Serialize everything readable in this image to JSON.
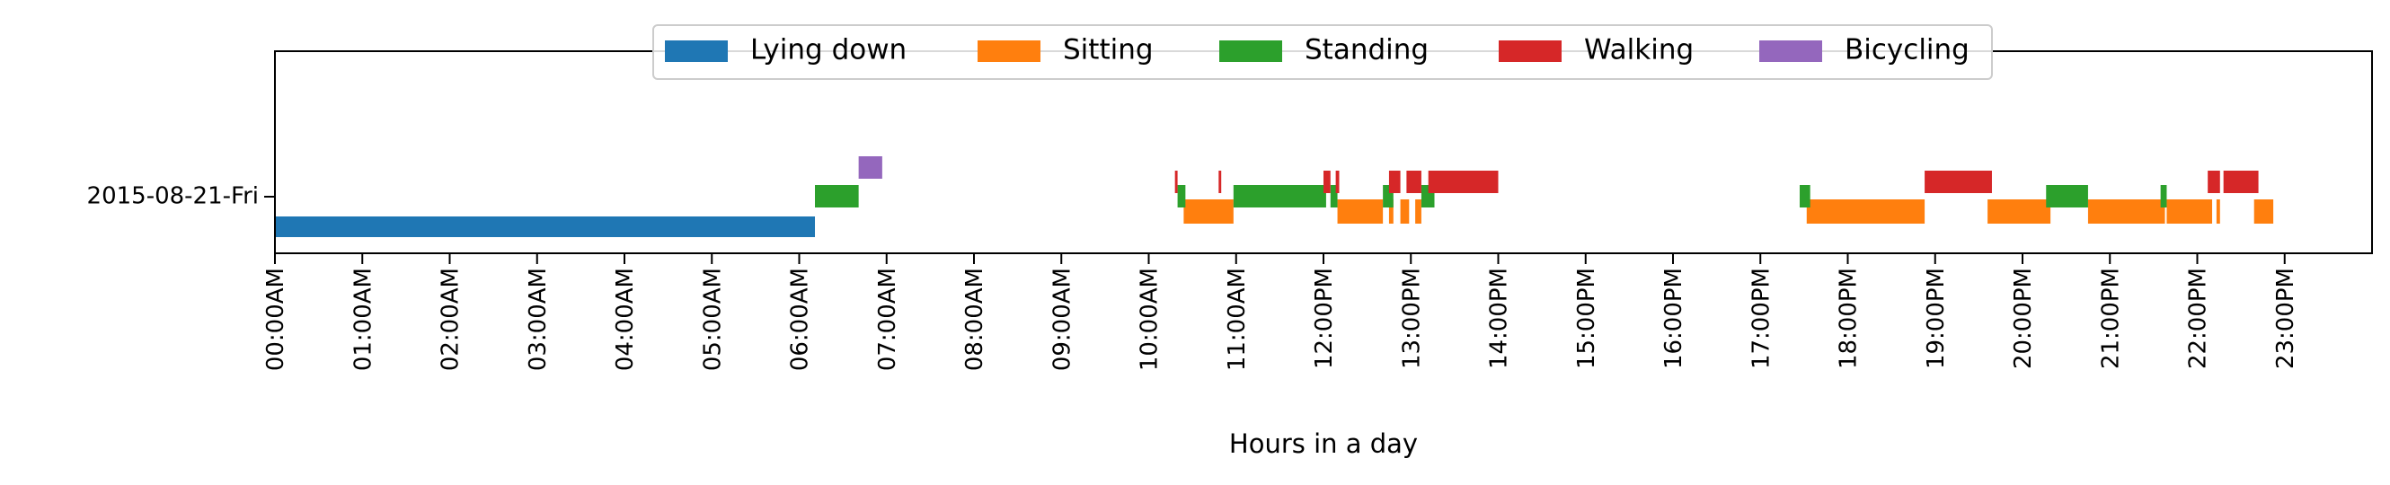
{
  "chart_data": {
    "type": "timeline",
    "xlabel": "Hours in a day",
    "ylabel": "",
    "xlim": [
      0,
      24
    ],
    "x_ticks": [
      0,
      1,
      2,
      3,
      4,
      5,
      6,
      7,
      8,
      9,
      10,
      11,
      12,
      13,
      14,
      15,
      16,
      17,
      18,
      19,
      20,
      21,
      22,
      23
    ],
    "x_tick_labels": [
      "00:00AM",
      "01:00AM",
      "02:00AM",
      "03:00AM",
      "04:00AM",
      "05:00AM",
      "06:00AM",
      "07:00AM",
      "08:00AM",
      "09:00AM",
      "10:00AM",
      "11:00AM",
      "12:00PM",
      "13:00PM",
      "14:00PM",
      "15:00PM",
      "16:00PM",
      "17:00PM",
      "18:00PM",
      "19:00PM",
      "20:00PM",
      "21:00PM",
      "22:00PM",
      "23:00PM"
    ],
    "categories": [
      "2015-08-21-Fri"
    ],
    "legend_position": "top-center",
    "series": [
      {
        "name": "Lying down",
        "color": "#1f77b4",
        "segments": [
          [
            0.0,
            6.18
          ]
        ]
      },
      {
        "name": "Sitting",
        "color": "#ff7f0e",
        "segments": [
          [
            10.4,
            10.97
          ],
          [
            12.16,
            12.68
          ],
          [
            12.75,
            12.8
          ],
          [
            12.88,
            12.98
          ],
          [
            13.05,
            13.12
          ],
          [
            17.53,
            18.88
          ],
          [
            19.6,
            20.32
          ],
          [
            20.75,
            21.63
          ],
          [
            21.65,
            22.17
          ],
          [
            22.22,
            22.26
          ],
          [
            22.65,
            22.87
          ]
        ]
      },
      {
        "name": "Standing",
        "color": "#2ca02c",
        "segments": [
          [
            6.18,
            6.68
          ],
          [
            10.33,
            10.42
          ],
          [
            10.97,
            12.03
          ],
          [
            12.08,
            12.16
          ],
          [
            12.68,
            12.8
          ],
          [
            13.12,
            13.27
          ],
          [
            17.45,
            17.57
          ],
          [
            20.27,
            20.75
          ],
          [
            21.58,
            21.65
          ]
        ]
      },
      {
        "name": "Walking",
        "color": "#d62728",
        "segments": [
          [
            10.3,
            10.33
          ],
          [
            10.8,
            10.83
          ],
          [
            12.0,
            12.08
          ],
          [
            12.14,
            12.18
          ],
          [
            12.75,
            12.88
          ],
          [
            12.95,
            13.12
          ],
          [
            13.2,
            14.0
          ],
          [
            18.88,
            19.65
          ],
          [
            22.12,
            22.26
          ],
          [
            22.3,
            22.7
          ]
        ]
      },
      {
        "name": "Bicycling",
        "color": "#9467bd",
        "segments": [
          [
            6.68,
            6.95
          ]
        ]
      }
    ]
  }
}
